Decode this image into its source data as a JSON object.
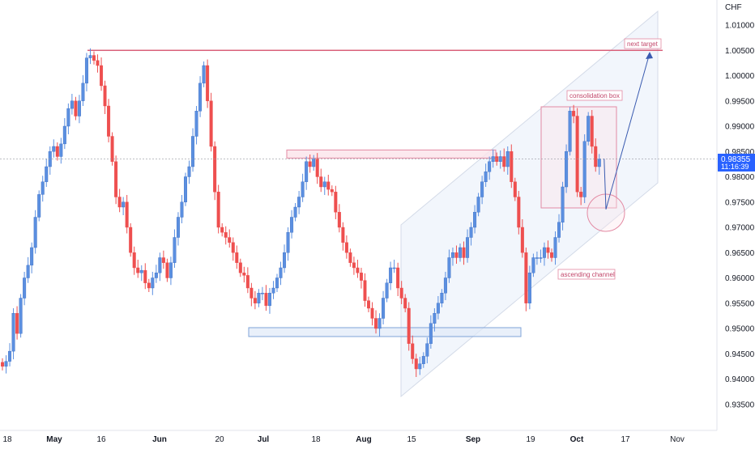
{
  "chart_data": {
    "type": "candlestick",
    "currency_label": "CHF",
    "y_ticks": [
      "1.01000",
      "1.00500",
      "1.00000",
      "0.99500",
      "0.99000",
      "0.98500",
      "0.98000",
      "0.97500",
      "0.97000",
      "0.96500",
      "0.96000",
      "0.95500",
      "0.95000",
      "0.94500",
      "0.94000",
      "0.93500"
    ],
    "x_ticks": [
      {
        "label": "18",
        "major": false
      },
      {
        "label": "May",
        "major": true
      },
      {
        "label": "16",
        "major": false
      },
      {
        "label": "Jun",
        "major": true
      },
      {
        "label": "20",
        "major": false
      },
      {
        "label": "Jul",
        "major": true
      },
      {
        "label": "18",
        "major": false
      },
      {
        "label": "Aug",
        "major": true
      },
      {
        "label": "15",
        "major": false
      },
      {
        "label": "Sep",
        "major": true
      },
      {
        "label": "19",
        "major": false
      },
      {
        "label": "Oct",
        "major": true
      },
      {
        "label": "17",
        "major": false
      },
      {
        "label": "Nov",
        "major": false
      }
    ],
    "current_price": "0.98355",
    "countdown": "11:16:39",
    "colors": {
      "up": "#5b8fe0",
      "down": "#ee4f4f",
      "resistance": "#d9607a",
      "box_pink": "#e38aa3",
      "box_blue": "#7fa3d8",
      "arrow": "#3a5bb0"
    },
    "annotations": {
      "next_target": "next target",
      "consolidation_box": "consolidation box",
      "ascending_channel": "ascending channel"
    },
    "resistance_level": 1.005,
    "resistance_zone": [
      0.9838,
      0.9853
    ],
    "support_zone": [
      0.948,
      0.95
    ],
    "closes": [
      0.9425,
      0.9435,
      0.9455,
      0.953,
      0.949,
      0.956,
      0.96,
      0.9625,
      0.966,
      0.972,
      0.9765,
      0.979,
      0.982,
      0.985,
      0.986,
      0.984,
      0.9865,
      0.99,
      0.9935,
      0.995,
      0.992,
      0.995,
      0.9985,
      1.0035,
      1.004,
      1.003,
      1.002,
      0.998,
      0.994,
      0.988,
      0.983,
      0.976,
      0.974,
      0.975,
      0.97,
      0.965,
      0.962,
      0.961,
      0.9615,
      0.959,
      0.958,
      0.96,
      0.961,
      0.964,
      0.963,
      0.96,
      0.963,
      0.968,
      0.972,
      0.975,
      0.98,
      0.982,
      0.988,
      0.993,
      0.9985,
      1.002,
      0.995,
      0.986,
      0.977,
      0.97,
      0.969,
      0.968,
      0.967,
      0.965,
      0.963,
      0.961,
      0.9605,
      0.958,
      0.956,
      0.955,
      0.957,
      0.957,
      0.9545,
      0.957,
      0.958,
      0.96,
      0.962,
      0.965,
      0.969,
      0.972,
      0.974,
      0.976,
      0.979,
      0.983,
      0.982,
      0.9835,
      0.98,
      0.978,
      0.979,
      0.9775,
      0.977,
      0.973,
      0.97,
      0.967,
      0.965,
      0.963,
      0.962,
      0.961,
      0.9595,
      0.9555,
      0.954,
      0.952,
      0.95,
      0.952,
      0.956,
      0.959,
      0.962,
      0.962,
      0.958,
      0.956,
      0.954,
      0.947,
      0.944,
      0.942,
      0.943,
      0.9445,
      0.947,
      0.951,
      0.953,
      0.955,
      0.957,
      0.96,
      0.964,
      0.965,
      0.964,
      0.966,
      0.964,
      0.968,
      0.97,
      0.973,
      0.976,
      0.979,
      0.981,
      0.983,
      0.984,
      0.983,
      0.984,
      0.982,
      0.985,
      0.979,
      0.976,
      0.97,
      0.965,
      0.955,
      0.961,
      0.964,
      0.964,
      0.964,
      0.966,
      0.965,
      0.964,
      0.968,
      0.971,
      0.978,
      0.985,
      0.993,
      0.992,
      0.977,
      0.976,
      0.987,
      0.992,
      0.986,
      0.982,
      0.9835
    ],
    "projection": [
      {
        "from": "current",
        "to_price": 0.975,
        "to_offset_days": 8
      },
      {
        "from": "low",
        "to_price": 1.0048,
        "to_offset_days": 16
      }
    ]
  }
}
